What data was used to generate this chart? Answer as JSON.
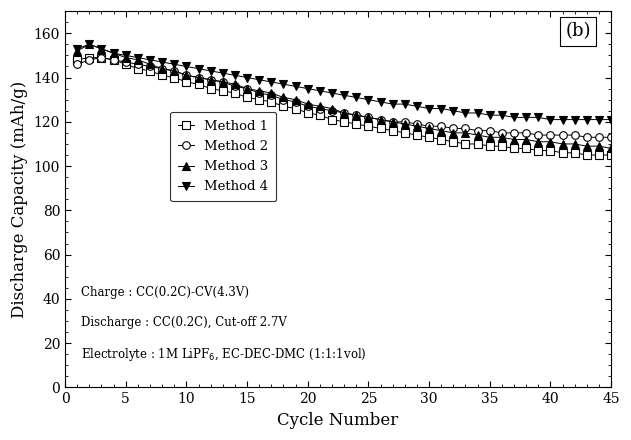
{
  "title_label": "(b)",
  "xlabel": "Cycle Number",
  "ylabel": "Discharge Capacity (mAh/g)",
  "xlim": [
    0,
    45
  ],
  "ylim": [
    0,
    170
  ],
  "yticks": [
    0,
    20,
    40,
    60,
    80,
    100,
    120,
    140,
    160
  ],
  "xticks": [
    0,
    5,
    10,
    15,
    20,
    25,
    30,
    35,
    40,
    45
  ],
  "annotation_lines": [
    "Charge : CC(0.2C)-CV(4.3V)",
    "Discharge : CC(0.2C), Cut-off 2.7V",
    "Electrolyte : 1M LiPF$_6$, EC-DEC-DMC (1:1:1vol)"
  ],
  "method1_x": [
    1,
    2,
    3,
    4,
    5,
    6,
    7,
    8,
    9,
    10,
    11,
    12,
    13,
    14,
    15,
    16,
    17,
    18,
    19,
    20,
    21,
    22,
    23,
    24,
    25,
    26,
    27,
    28,
    29,
    30,
    31,
    32,
    33,
    34,
    35,
    36,
    37,
    38,
    39,
    40,
    41,
    42,
    43,
    44,
    45
  ],
  "method1_y": [
    148,
    149,
    149,
    148,
    146,
    144,
    143,
    141,
    140,
    138,
    137,
    135,
    134,
    133,
    131,
    130,
    129,
    127,
    126,
    124,
    123,
    121,
    120,
    119,
    118,
    117,
    116,
    115,
    114,
    113,
    112,
    111,
    110,
    110,
    109,
    109,
    108,
    108,
    107,
    107,
    106,
    106,
    105,
    105,
    105
  ],
  "method2_x": [
    1,
    2,
    3,
    4,
    5,
    6,
    7,
    8,
    9,
    10,
    11,
    12,
    13,
    14,
    15,
    16,
    17,
    18,
    19,
    20,
    21,
    22,
    23,
    24,
    25,
    26,
    27,
    28,
    29,
    30,
    31,
    32,
    33,
    34,
    35,
    36,
    37,
    38,
    39,
    40,
    41,
    42,
    43,
    44,
    45
  ],
  "method2_y": [
    146,
    148,
    149,
    148,
    147,
    146,
    145,
    144,
    143,
    141,
    140,
    139,
    138,
    136,
    135,
    133,
    132,
    130,
    129,
    127,
    126,
    125,
    124,
    123,
    122,
    121,
    120,
    120,
    119,
    118,
    118,
    117,
    117,
    116,
    116,
    115,
    115,
    115,
    114,
    114,
    114,
    114,
    113,
    113,
    113
  ],
  "method3_x": [
    1,
    2,
    3,
    4,
    5,
    6,
    7,
    8,
    9,
    10,
    11,
    12,
    13,
    14,
    15,
    16,
    17,
    18,
    19,
    20,
    21,
    22,
    23,
    24,
    25,
    26,
    27,
    28,
    29,
    30,
    31,
    32,
    33,
    34,
    35,
    36,
    37,
    38,
    39,
    40,
    41,
    42,
    43,
    44,
    45
  ],
  "method3_y": [
    152,
    155,
    153,
    151,
    149,
    148,
    146,
    144,
    143,
    141,
    140,
    139,
    138,
    137,
    135,
    134,
    133,
    131,
    130,
    128,
    127,
    126,
    124,
    123,
    122,
    121,
    120,
    119,
    118,
    117,
    116,
    115,
    115,
    114,
    113,
    113,
    112,
    112,
    111,
    111,
    110,
    110,
    109,
    109,
    108
  ],
  "method4_x": [
    1,
    2,
    3,
    4,
    5,
    6,
    7,
    8,
    9,
    10,
    11,
    12,
    13,
    14,
    15,
    16,
    17,
    18,
    19,
    20,
    21,
    22,
    23,
    24,
    25,
    26,
    27,
    28,
    29,
    30,
    31,
    32,
    33,
    34,
    35,
    36,
    37,
    38,
    39,
    40,
    41,
    42,
    43,
    44,
    45
  ],
  "method4_y": [
    153,
    155,
    153,
    151,
    150,
    149,
    148,
    147,
    146,
    145,
    144,
    143,
    142,
    141,
    140,
    139,
    138,
    137,
    136,
    135,
    134,
    133,
    132,
    131,
    130,
    129,
    128,
    128,
    127,
    126,
    126,
    125,
    124,
    124,
    123,
    123,
    122,
    122,
    122,
    121,
    121,
    121,
    121,
    121,
    121
  ],
  "legend_labels": [
    "Method 1",
    "Method 2",
    "Method 3",
    "Method 4"
  ],
  "bg_color": "#ffffff",
  "marker_size": 5.5,
  "linewidth": 0.7
}
